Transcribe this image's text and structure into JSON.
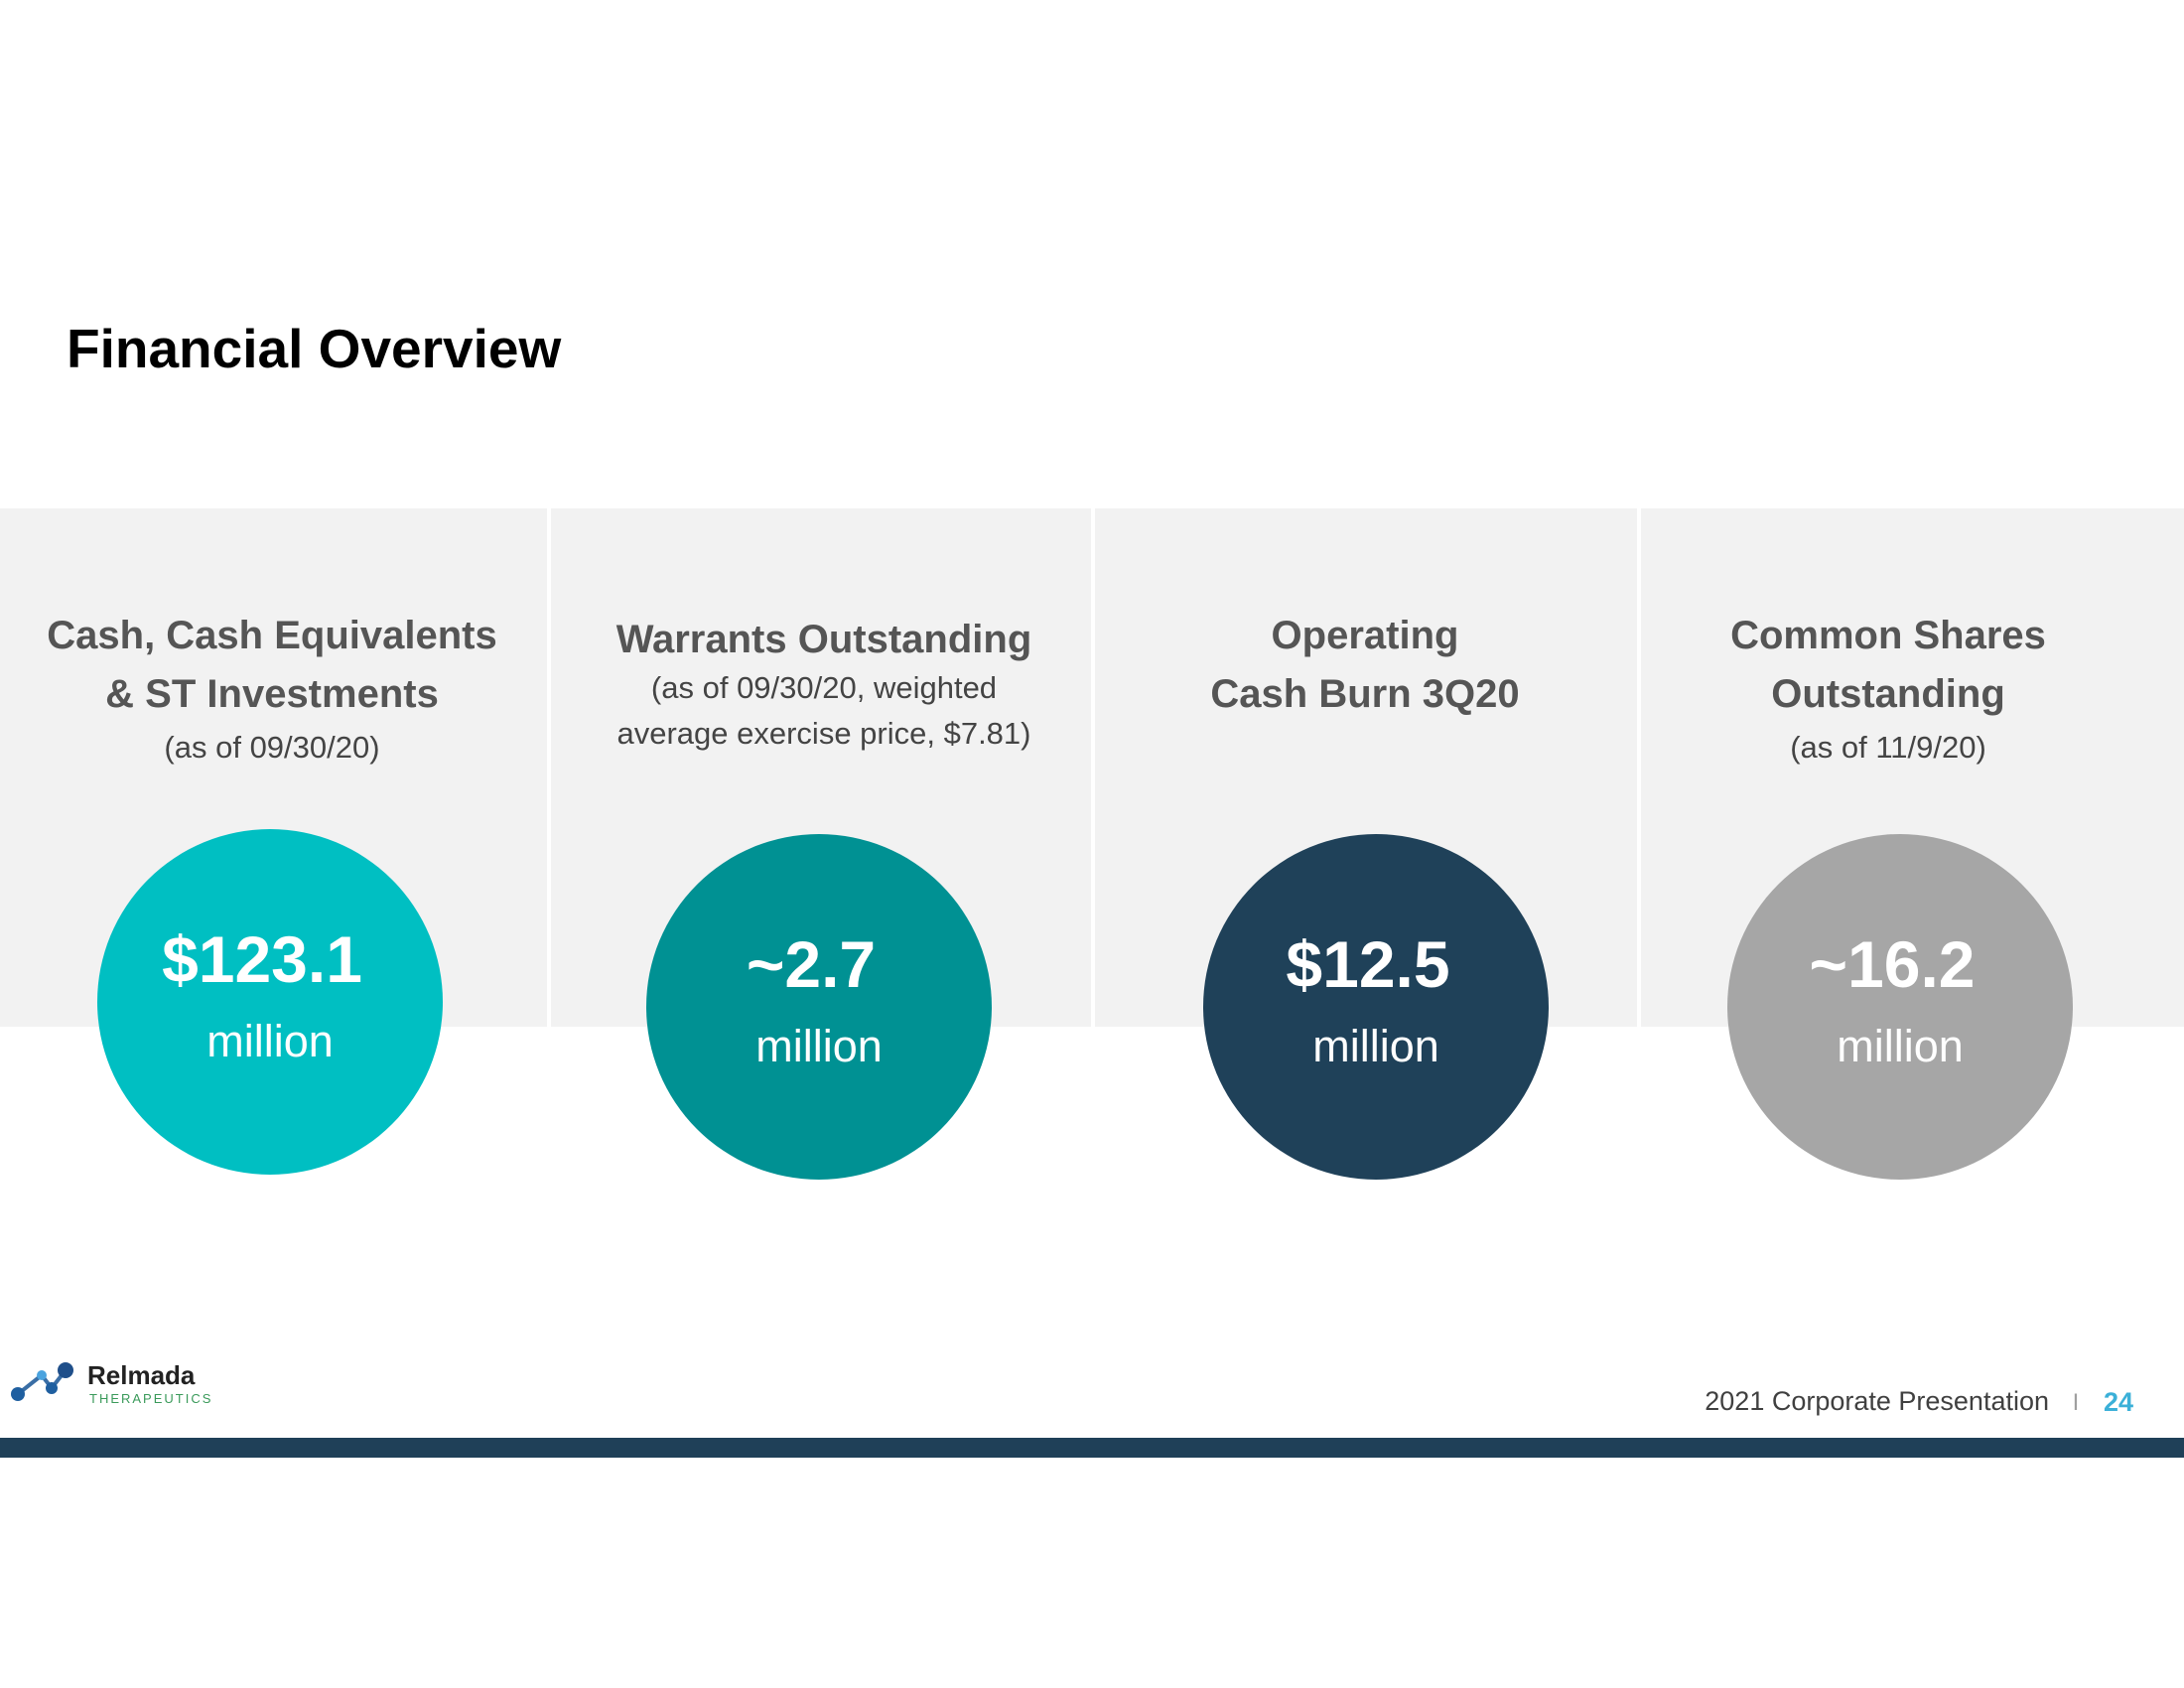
{
  "header": {
    "title": "Financial Overview"
  },
  "columns": [
    {
      "heading": [
        "Cash, Cash Equivalents",
        "& ST Investments"
      ],
      "note": [
        "(as of 09/30/20)"
      ],
      "value": "$123.1",
      "unit": "million",
      "color": "#00bfc2"
    },
    {
      "heading": [
        "Warrants Outstanding"
      ],
      "note": [
        "(as of 09/30/20, weighted",
        "average exercise price, $7.81)"
      ],
      "value": "~2.7",
      "unit": "million",
      "color": "#009193"
    },
    {
      "heading": [
        "Operating",
        "Cash Burn 3Q20"
      ],
      "note": [],
      "value": "$12.5",
      "unit": "million",
      "color": "#1f4159"
    },
    {
      "heading": [
        "Common Shares",
        "Outstanding"
      ],
      "note": [
        "(as of 11/9/20)"
      ],
      "value": "~16.2",
      "unit": "million",
      "color": "#a6a6a6"
    }
  ],
  "footer": {
    "logo_name": "Relmada",
    "logo_sub": "THERAPEUTICS",
    "text": "2021 Corporate Presentation",
    "separator": "I",
    "page_number": "24"
  }
}
